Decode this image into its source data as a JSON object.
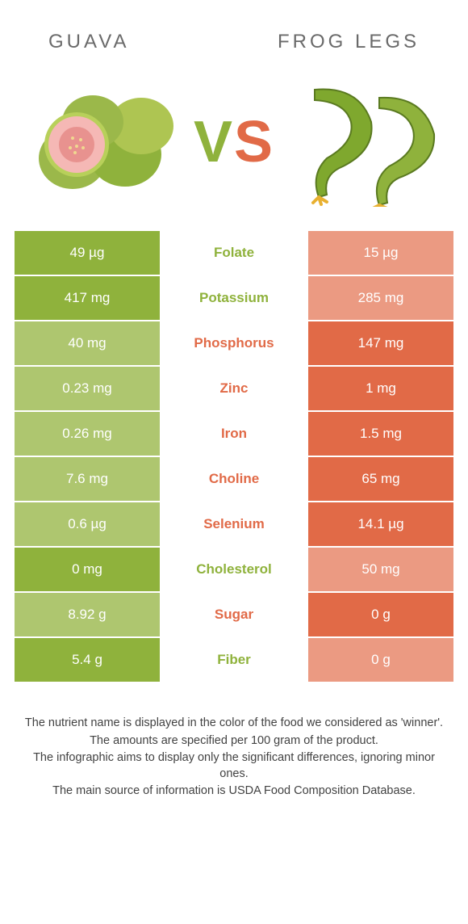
{
  "colors": {
    "green": "#8fb23c",
    "orange": "#e16a47",
    "green_dim": "#aec66f",
    "orange_dim": "#eb9a82",
    "text_gray": "#6a6a6a",
    "footer_text": "#424242"
  },
  "header": {
    "left": "Guava",
    "right": "Frog legs",
    "vs": "VS"
  },
  "rows": [
    {
      "nutrient": "Folate",
      "left": "49 µg",
      "right": "15 µg",
      "winner": "left"
    },
    {
      "nutrient": "Potassium",
      "left": "417 mg",
      "right": "285 mg",
      "winner": "left"
    },
    {
      "nutrient": "Phosphorus",
      "left": "40 mg",
      "right": "147 mg",
      "winner": "right"
    },
    {
      "nutrient": "Zinc",
      "left": "0.23 mg",
      "right": "1 mg",
      "winner": "right"
    },
    {
      "nutrient": "Iron",
      "left": "0.26 mg",
      "right": "1.5 mg",
      "winner": "right"
    },
    {
      "nutrient": "Choline",
      "left": "7.6 mg",
      "right": "65 mg",
      "winner": "right"
    },
    {
      "nutrient": "Selenium",
      "left": "0.6 µg",
      "right": "14.1 µg",
      "winner": "right"
    },
    {
      "nutrient": "Cholesterol",
      "left": "0 mg",
      "right": "50 mg",
      "winner": "left"
    },
    {
      "nutrient": "Sugar",
      "left": "8.92 g",
      "right": "0 g",
      "winner": "right"
    },
    {
      "nutrient": "Fiber",
      "left": "5.4 g",
      "right": "0 g",
      "winner": "left"
    }
  ],
  "footer": [
    "The nutrient name is displayed in the color of the food we considered as 'winner'.",
    "The amounts are specified per 100 gram of the product.",
    "The infographic aims to display only the significant differences, ignoring minor ones.",
    "The main source of information is USDA Food Composition Database."
  ]
}
